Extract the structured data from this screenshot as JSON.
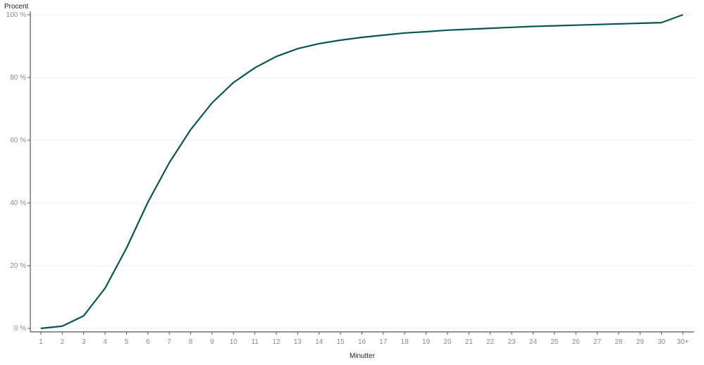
{
  "chart_data": {
    "type": "line",
    "title": "",
    "xlabel": "Minutter",
    "ylabel": "Procent",
    "categories": [
      "1",
      "2",
      "3",
      "4",
      "5",
      "6",
      "7",
      "8",
      "9",
      "10",
      "11",
      "12",
      "13",
      "14",
      "15",
      "16",
      "17",
      "18",
      "19",
      "20",
      "21",
      "22",
      "23",
      "24",
      "25",
      "26",
      "27",
      "28",
      "29",
      "30",
      "30+"
    ],
    "series": [
      {
        "values": [
          0,
          0.7,
          4,
          12.8,
          25.6,
          40.2,
          52.8,
          63.4,
          71.9,
          78.4,
          83.1,
          86.7,
          89.2,
          90.8,
          91.9,
          92.8,
          93.5,
          94.2,
          94.6,
          95.1,
          95.4,
          95.7,
          96,
          96.3,
          96.5,
          96.7,
          96.9,
          97.1,
          97.3,
          97.5,
          100
        ]
      }
    ],
    "ylim": [
      0,
      100
    ],
    "yticks": [
      0,
      20,
      40,
      60,
      80,
      100
    ],
    "ytick_labels": [
      "0 %",
      "20 %",
      "40 %",
      "60 %",
      "80 %",
      "100 %"
    ],
    "grid": "horizontal",
    "line_color": "#0b5454"
  }
}
